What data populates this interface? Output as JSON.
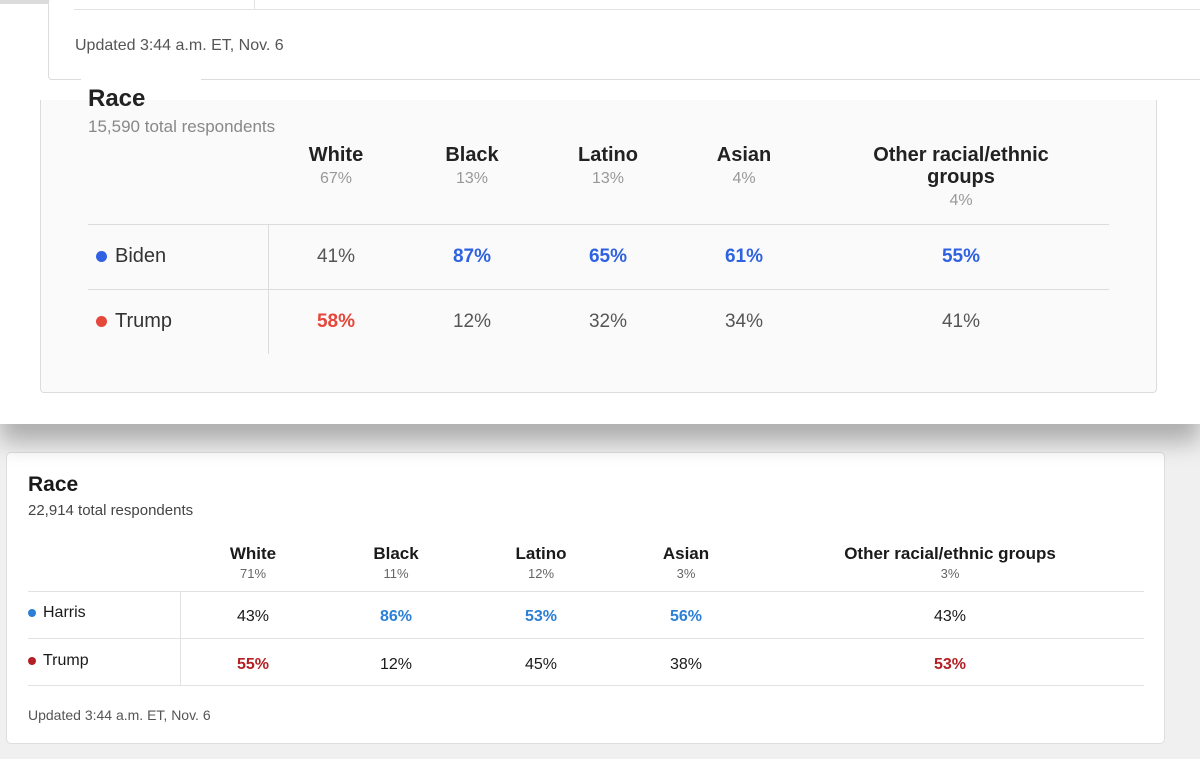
{
  "top": {
    "updated": "Updated 3:44 a.m. ET, Nov. 6",
    "title": "Race",
    "respondents": "15,590 total respondents",
    "columns": [
      {
        "label": "White",
        "pct": "67%"
      },
      {
        "label": "Black",
        "pct": "13%"
      },
      {
        "label": "Latino",
        "pct": "13%"
      },
      {
        "label": "Asian",
        "pct": "4%"
      },
      {
        "label": "Other racial/ethnic groups",
        "pct": "4%"
      }
    ],
    "rows": [
      {
        "candidate": "Biden",
        "color": "#2e62e0",
        "values": [
          "41%",
          "87%",
          "65%",
          "61%",
          "55%"
        ]
      },
      {
        "candidate": "Trump",
        "color": "#e5473a",
        "values": [
          "58%",
          "12%",
          "32%",
          "34%",
          "41%"
        ]
      }
    ]
  },
  "bottom": {
    "title": "Race",
    "respondents": "22,914 total respondents",
    "columns": [
      {
        "label": "White",
        "pct": "71%"
      },
      {
        "label": "Black",
        "pct": "11%"
      },
      {
        "label": "Latino",
        "pct": "12%"
      },
      {
        "label": "Asian",
        "pct": "3%"
      },
      {
        "label": "Other racial/ethnic groups",
        "pct": "3%"
      }
    ],
    "rows": [
      {
        "candidate": "Harris",
        "color": "#2b7fd6",
        "values": [
          "43%",
          "86%",
          "53%",
          "56%",
          "43%"
        ]
      },
      {
        "candidate": "Trump",
        "color": "#b41f24",
        "values": [
          "55%",
          "12%",
          "45%",
          "38%",
          "53%"
        ]
      }
    ],
    "updated": "Updated 3:44 a.m. ET, Nov. 6"
  }
}
